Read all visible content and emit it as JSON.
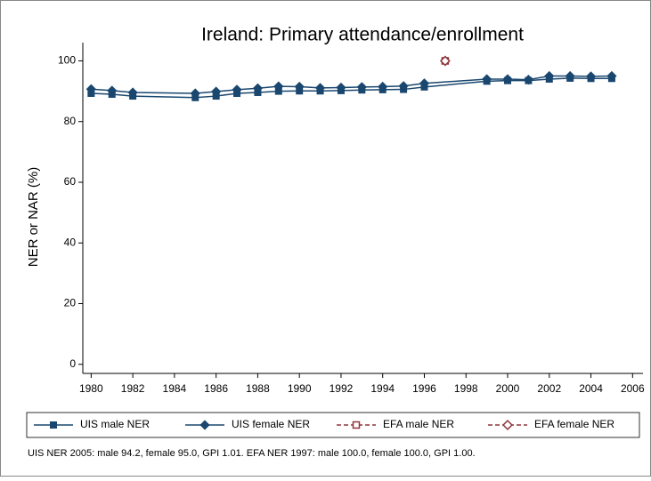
{
  "chart_data": {
    "type": "line",
    "title": "Ireland: Primary attendance/enrollment",
    "y_label": "NER or NAR (%)",
    "note": "UIS NER 2005: male 94.2, female 95.0, GPI 1.01. EFA NER 1997: male 100.0, female 100.0, GPI 1.00.",
    "xlim": [
      1979.6,
      2006.5
    ],
    "xticks": [
      1980,
      1982,
      1984,
      1986,
      1988,
      1990,
      1992,
      1994,
      1996,
      1998,
      2000,
      2002,
      2004,
      2006
    ],
    "ylim": [
      -3,
      106
    ],
    "yticks": [
      0,
      20,
      40,
      60,
      80,
      100
    ],
    "series": [
      {
        "name": "UIS male NER",
        "color": "#1a476f",
        "marker": "square",
        "filled": true,
        "dashed": false,
        "x": [
          1980,
          1981,
          1982,
          1985,
          1986,
          1987,
          1988,
          1989,
          1990,
          1991,
          1992,
          1993,
          1994,
          1995,
          1996,
          1999,
          2000,
          2001,
          2002,
          2003,
          2004,
          2005
        ],
        "values": [
          89.3,
          89.0,
          88.4,
          87.9,
          88.4,
          89.3,
          89.6,
          90.0,
          90.1,
          90.1,
          90.2,
          90.4,
          90.5,
          90.6,
          91.4,
          93.3,
          93.5,
          93.5,
          94.0,
          94.3,
          94.2,
          94.2
        ]
      },
      {
        "name": "UIS female NER",
        "color": "#1a476f",
        "marker": "diamond",
        "filled": true,
        "dashed": false,
        "x": [
          1980,
          1981,
          1982,
          1985,
          1986,
          1987,
          1988,
          1989,
          1990,
          1991,
          1992,
          1993,
          1994,
          1995,
          1996,
          1999,
          2000,
          2001,
          2002,
          2003,
          2004,
          2005
        ],
        "values": [
          90.7,
          90.2,
          89.6,
          89.3,
          89.9,
          90.5,
          91.0,
          91.6,
          91.5,
          91.1,
          91.2,
          91.4,
          91.5,
          91.7,
          92.6,
          94.0,
          94.0,
          93.8,
          95.0,
          95.0,
          94.9,
          95.0
        ]
      },
      {
        "name": "EFA male NER",
        "color": "#90353b",
        "marker": "square",
        "filled": false,
        "dashed": true,
        "x": [
          1997
        ],
        "values": [
          100.0
        ]
      },
      {
        "name": "EFA female NER",
        "color": "#90353b",
        "marker": "diamond",
        "filled": false,
        "dashed": true,
        "x": [
          1997
        ],
        "values": [
          100.0
        ]
      }
    ]
  }
}
